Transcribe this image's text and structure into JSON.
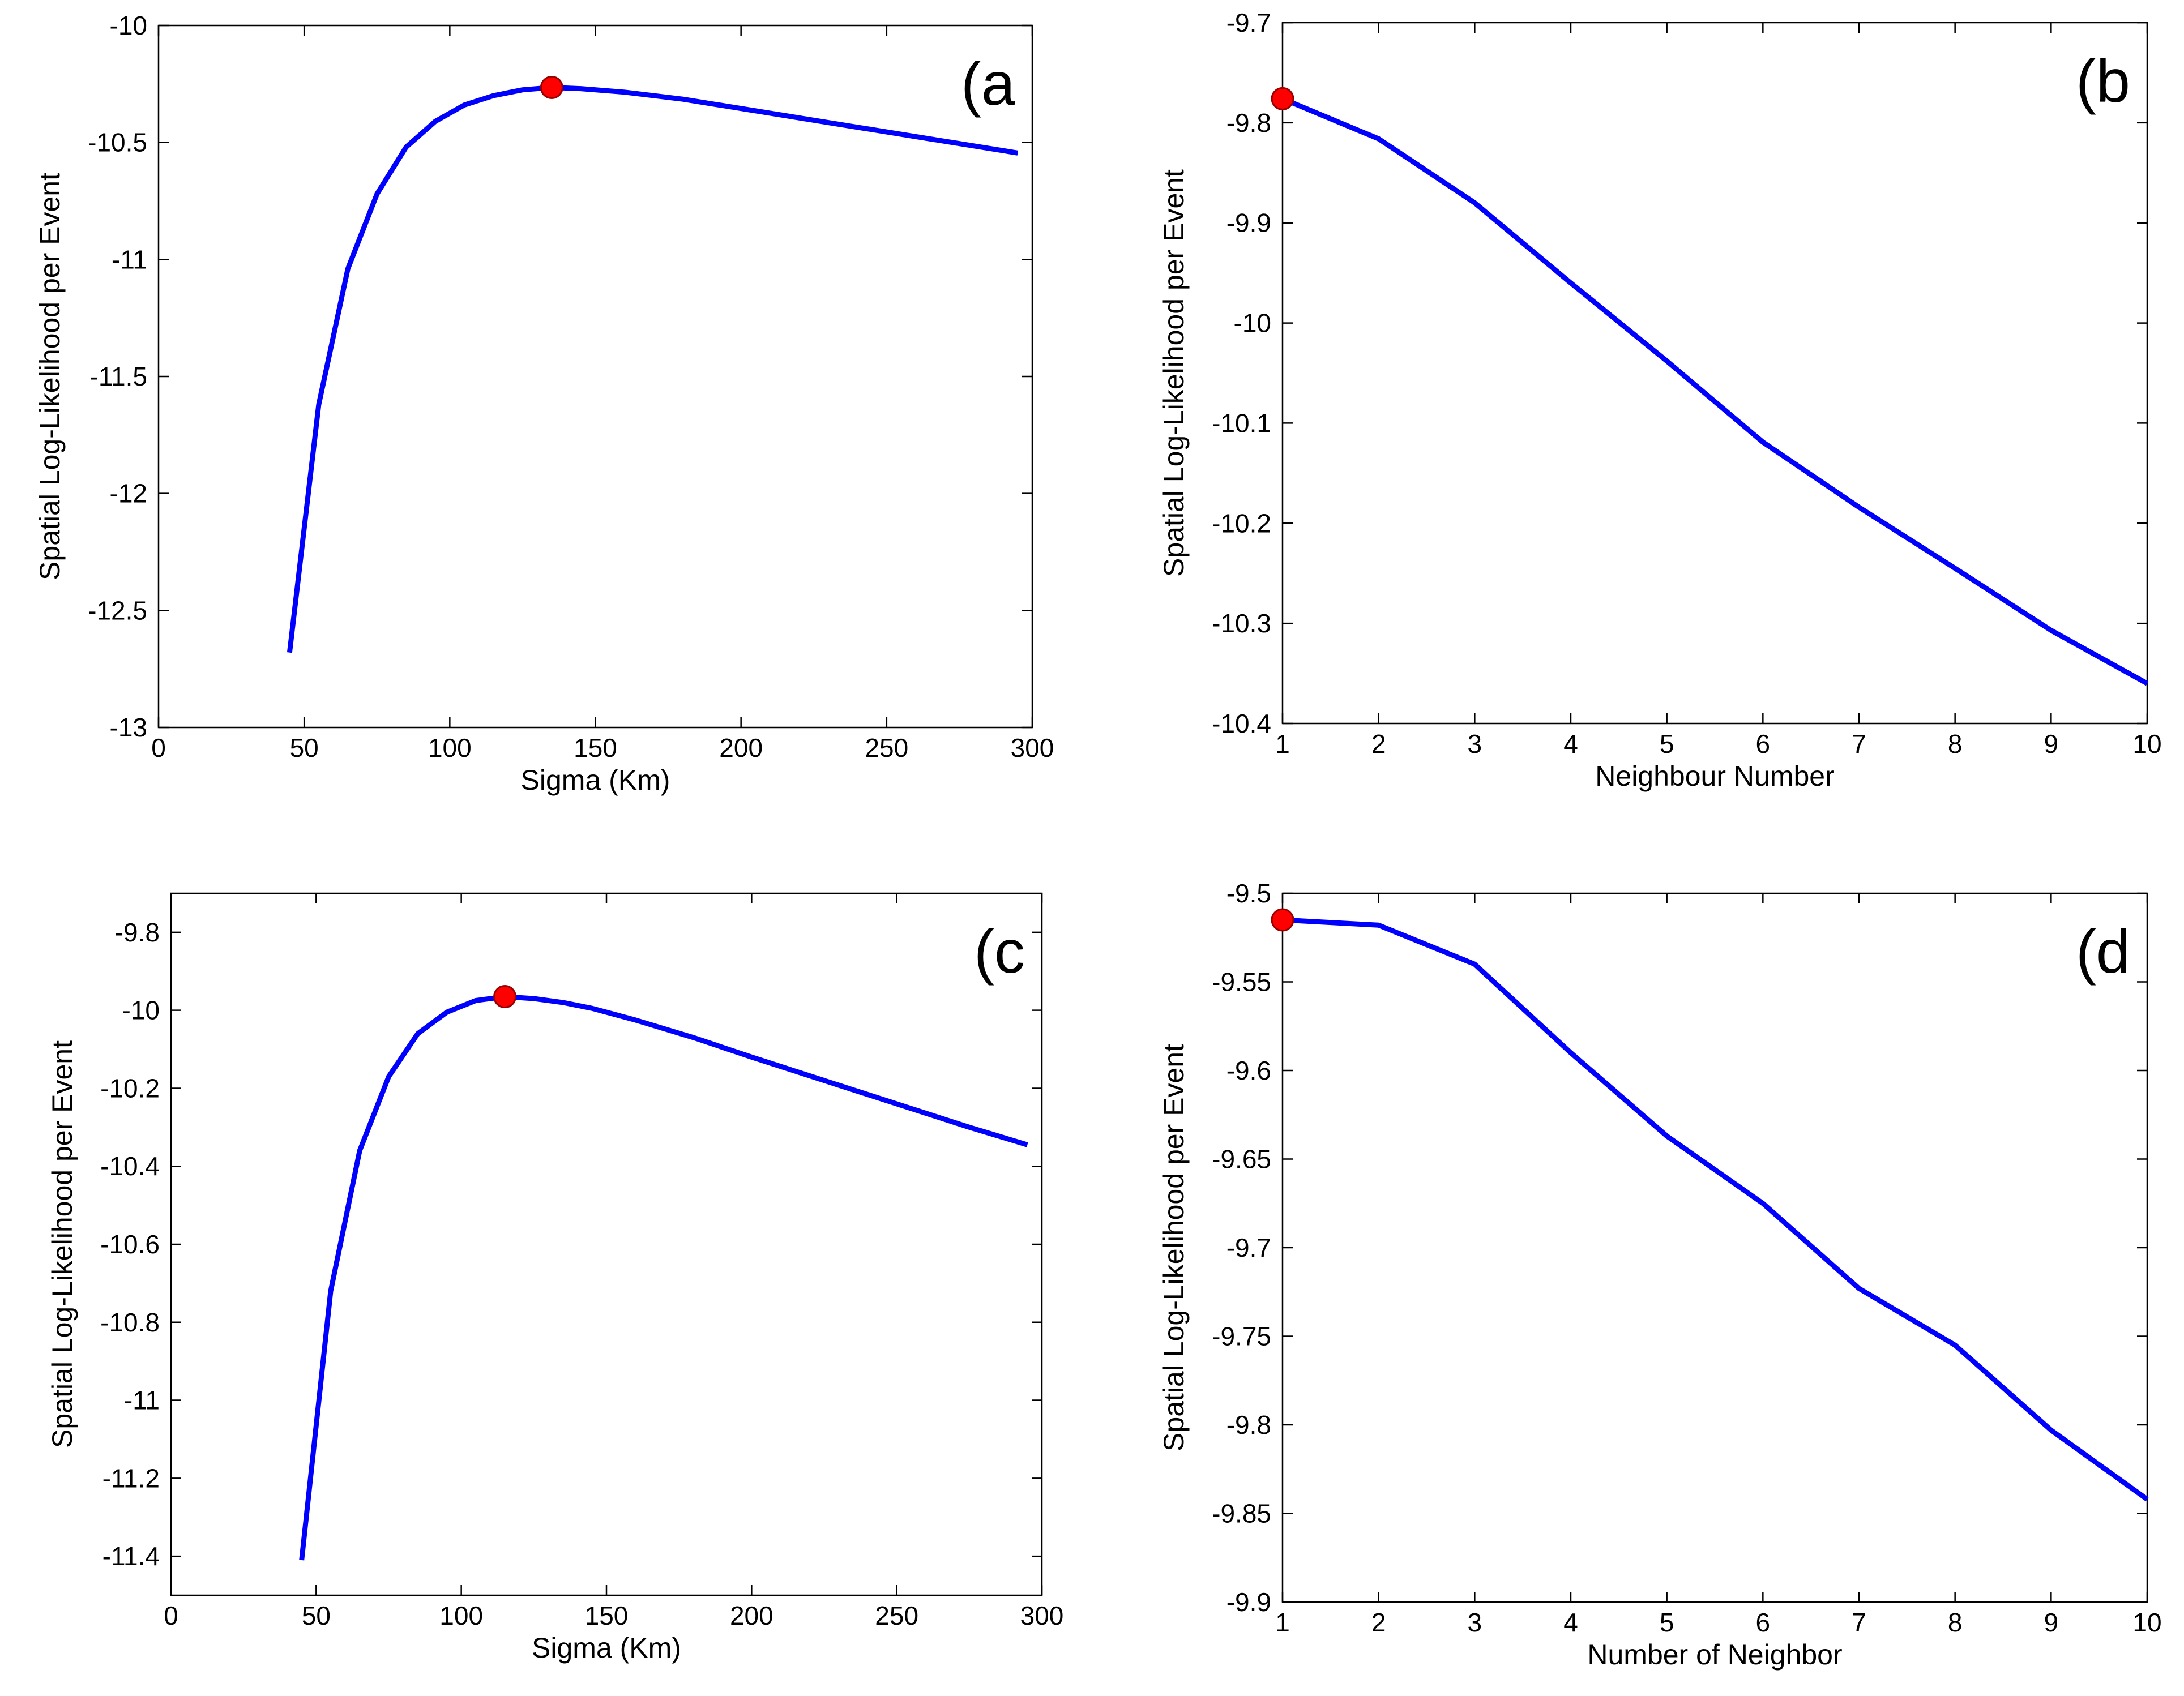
{
  "colors": {
    "line": "#0000ff",
    "marker": "#ff0000",
    "marker_edge": "#990000",
    "axes": "#000000",
    "background": "#ffffff"
  },
  "chart_data": [
    {
      "id": "a",
      "type": "line",
      "panel_label": "(a",
      "title": "",
      "xlabel": "Sigma (Km)",
      "ylabel": "Spatial Log-Likelihood per Event",
      "xlim": [
        0,
        300
      ],
      "ylim": [
        -13,
        -10
      ],
      "xticks": [
        0,
        50,
        100,
        150,
        200,
        250,
        300
      ],
      "yticks": [
        -10,
        -10.5,
        -11,
        -11.5,
        -12,
        -12.5,
        -13
      ],
      "xtick_labels": [
        "0",
        "50",
        "100",
        "150",
        "200",
        "250",
        "300"
      ],
      "ytick_labels": [
        "-10",
        "-10.5",
        "-11",
        "-11.5",
        "-12",
        "-12.5",
        "-13"
      ],
      "series": [
        {
          "name": "log-likelihood",
          "x": [
            45,
            55,
            65,
            75,
            85,
            95,
            105,
            115,
            125,
            135,
            145,
            160,
            180,
            200,
            225,
            250,
            275,
            295
          ],
          "values": [
            -12.68,
            -11.62,
            -11.04,
            -10.72,
            -10.52,
            -10.41,
            -10.34,
            -10.3,
            -10.275,
            -10.265,
            -10.27,
            -10.285,
            -10.315,
            -10.355,
            -10.405,
            -10.455,
            -10.505,
            -10.545
          ]
        }
      ],
      "highlight": {
        "x": 135,
        "y": -10.265
      }
    },
    {
      "id": "b",
      "type": "line",
      "panel_label": "(b",
      "title": "",
      "xlabel": "Neighbour Number",
      "ylabel": "Spatial Log-Likelihood per Event",
      "xlim": [
        1,
        10
      ],
      "ylim": [
        -10.4,
        -9.7
      ],
      "xticks": [
        1,
        2,
        3,
        4,
        5,
        6,
        7,
        8,
        9,
        10
      ],
      "yticks": [
        -9.7,
        -9.8,
        -9.9,
        -10,
        -10.1,
        -10.2,
        -10.3,
        -10.4
      ],
      "xtick_labels": [
        "1",
        "2",
        "3",
        "4",
        "5",
        "6",
        "7",
        "8",
        "9",
        "10"
      ],
      "ytick_labels": [
        "-9.7",
        "-9.8",
        "-9.9",
        "-10",
        "-10.1",
        "-10.2",
        "-10.3",
        "-10.4"
      ],
      "series": [
        {
          "name": "log-likelihood",
          "x": [
            1,
            2,
            3,
            4,
            5,
            6,
            7,
            8,
            9,
            10
          ],
          "values": [
            -9.776,
            -9.816,
            -9.88,
            -9.96,
            -10.038,
            -10.119,
            -10.184,
            -10.245,
            -10.307,
            -10.36
          ]
        }
      ],
      "highlight": {
        "x": 1,
        "y": -9.776
      }
    },
    {
      "id": "c",
      "type": "line",
      "panel_label": "(c",
      "title": "",
      "xlabel": "Sigma (Km)",
      "ylabel": "Spatial Log-Likelihood per Event",
      "xlim": [
        0,
        300
      ],
      "ylim": [
        -11.5,
        -9.7
      ],
      "xticks": [
        0,
        50,
        100,
        150,
        200,
        250,
        300
      ],
      "yticks": [
        -9.8,
        -10,
        -10.2,
        -10.4,
        -10.6,
        -10.8,
        -11,
        -11.2,
        -11.4
      ],
      "xtick_labels": [
        "0",
        "50",
        "100",
        "150",
        "200",
        "250",
        "300"
      ],
      "ytick_labels": [
        "-9.8",
        "-10",
        "-10.2",
        "-10.4",
        "-10.6",
        "-10.8",
        "-11",
        "-11.2",
        "-11.4"
      ],
      "series": [
        {
          "name": "log-likelihood",
          "x": [
            45,
            55,
            65,
            75,
            85,
            95,
            105,
            115,
            125,
            135,
            145,
            160,
            180,
            200,
            225,
            250,
            275,
            295
          ],
          "values": [
            -11.41,
            -10.72,
            -10.36,
            -10.17,
            -10.06,
            -10.005,
            -9.975,
            -9.965,
            -9.97,
            -9.98,
            -9.995,
            -10.025,
            -10.07,
            -10.12,
            -10.18,
            -10.24,
            -10.3,
            -10.345
          ]
        }
      ],
      "highlight": {
        "x": 115,
        "y": -9.965
      }
    },
    {
      "id": "d",
      "type": "line",
      "panel_label": "(d",
      "title": "",
      "xlabel": "Number of Neighbor",
      "ylabel": "Spatial Log-Likelihood per Event",
      "xlim": [
        1,
        10
      ],
      "ylim": [
        -9.9,
        -9.5
      ],
      "xticks": [
        1,
        2,
        3,
        4,
        5,
        6,
        7,
        8,
        9,
        10
      ],
      "yticks": [
        -9.5,
        -9.55,
        -9.6,
        -9.65,
        -9.7,
        -9.75,
        -9.8,
        -9.85,
        -9.9
      ],
      "xtick_labels": [
        "1",
        "2",
        "3",
        "4",
        "5",
        "6",
        "7",
        "8",
        "9",
        "10"
      ],
      "ytick_labels": [
        "-9.5",
        "-9.55",
        "-9.6",
        "-9.65",
        "-9.7",
        "-9.75",
        "-9.8",
        "-9.85",
        "-9.9"
      ],
      "series": [
        {
          "name": "log-likelihood",
          "x": [
            1,
            2,
            3,
            4,
            5,
            6,
            7,
            8,
            9,
            10
          ],
          "values": [
            -9.515,
            -9.518,
            -9.54,
            -9.59,
            -9.637,
            -9.675,
            -9.723,
            -9.755,
            -9.803,
            -9.842
          ]
        }
      ],
      "highlight": {
        "x": 1,
        "y": -9.515
      }
    }
  ]
}
